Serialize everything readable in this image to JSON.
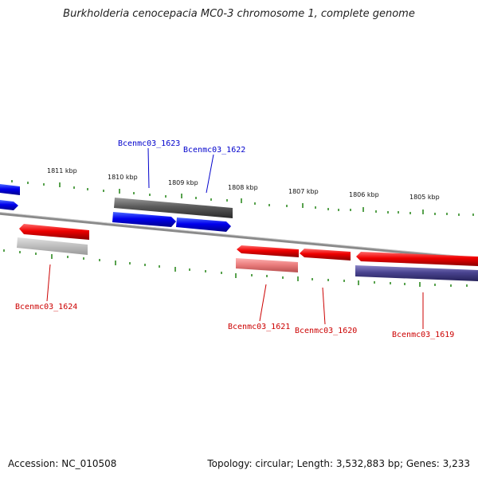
{
  "title": "Burkholderia cenocepacia MC0-3 chromosome 1, complete genome",
  "footer": {
    "accession": "Accession: NC_010508",
    "summary": "Topology: circular; Length: 3,532,883 bp; Genes: 3,233"
  },
  "scale_labels": [
    "1811 kbp",
    "1810 kbp",
    "1809 kbp",
    "1808 kbp",
    "1807 kbp",
    "1806 kbp",
    "1805 kbp"
  ],
  "genes_top": [
    "Bcenmc03_1623",
    "Bcenmc03_1622"
  ],
  "genes_bottom": [
    "Bcenmc03_1624",
    "Bcenmc03_1621",
    "Bcenmc03_1620",
    "Bcenmc03_1619"
  ],
  "colors": {
    "forward": "#0000ee",
    "reverse": "#ee0000",
    "backbone": "#777777",
    "ticks": "#2e8b22",
    "rna_gray": "#666666",
    "purple": "#4a4490"
  }
}
